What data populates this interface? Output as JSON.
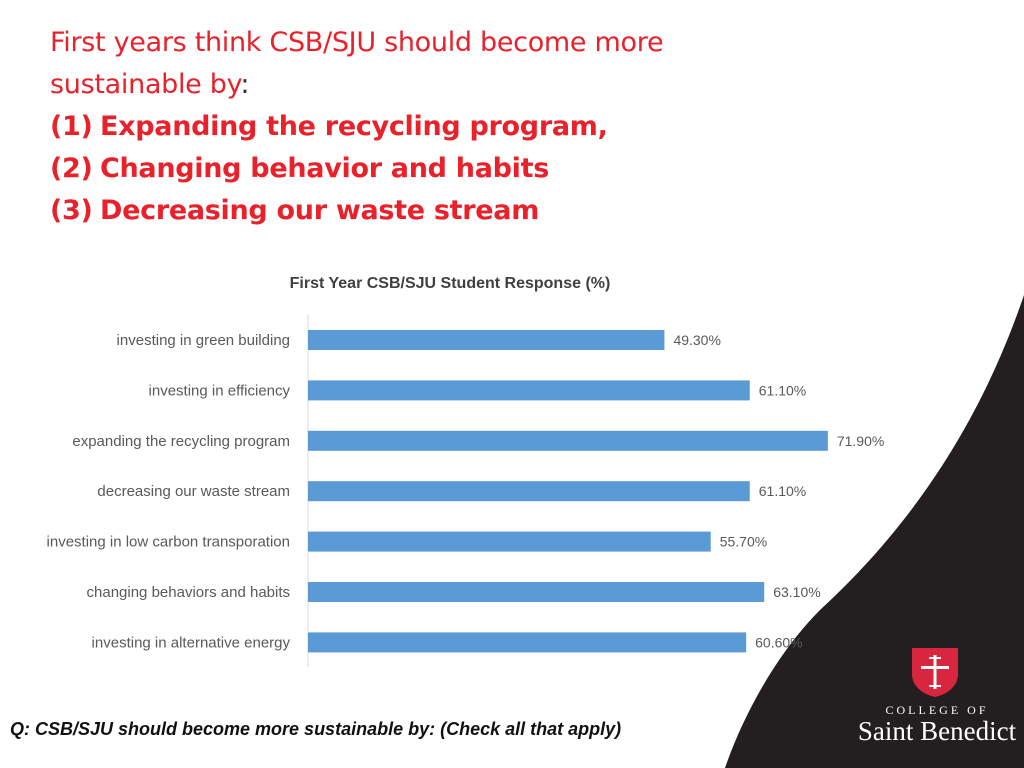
{
  "title": {
    "line1": "First years think CSB/SJU should become more",
    "line2": "sustainable by",
    "line2_suffix": ":",
    "points": [
      {
        "num": "(1)",
        "text": "Expanding the recycling program,"
      },
      {
        "num": "(2)",
        "text": "Changing behavior and habits"
      },
      {
        "num": "(3)",
        "text": "Decreasing our waste stream"
      }
    ]
  },
  "chart_data": {
    "type": "bar",
    "orientation": "horizontal",
    "title": "First Year CSB/SJU Student Response (%)",
    "categories": [
      "investing in green building",
      "investing in efficiency",
      "expanding the recycling program",
      "decreasing our waste stream",
      "investing in low carbon transporation",
      "changing behaviors and habits",
      "investing in alternative energy"
    ],
    "values": [
      49.3,
      61.1,
      71.9,
      61.1,
      55.7,
      63.1,
      60.6
    ],
    "value_labels": [
      "49.30%",
      "61.10%",
      "71.90%",
      "61.10%",
      "55.70%",
      "63.10%",
      "60.60%"
    ],
    "xlim": [
      0,
      80
    ],
    "grid": false,
    "legend": "none",
    "bar_color": "#5b9bd5"
  },
  "footnote": "Q: CSB/SJU should become more sustainable by: (Check all that apply)",
  "logo": {
    "line1": "COLLEGE OF",
    "line2": "Saint Benedict",
    "shield_color": "#d7263d"
  },
  "colors": {
    "title_red": "#e8212b",
    "swoosh_dark": "#231f20"
  }
}
